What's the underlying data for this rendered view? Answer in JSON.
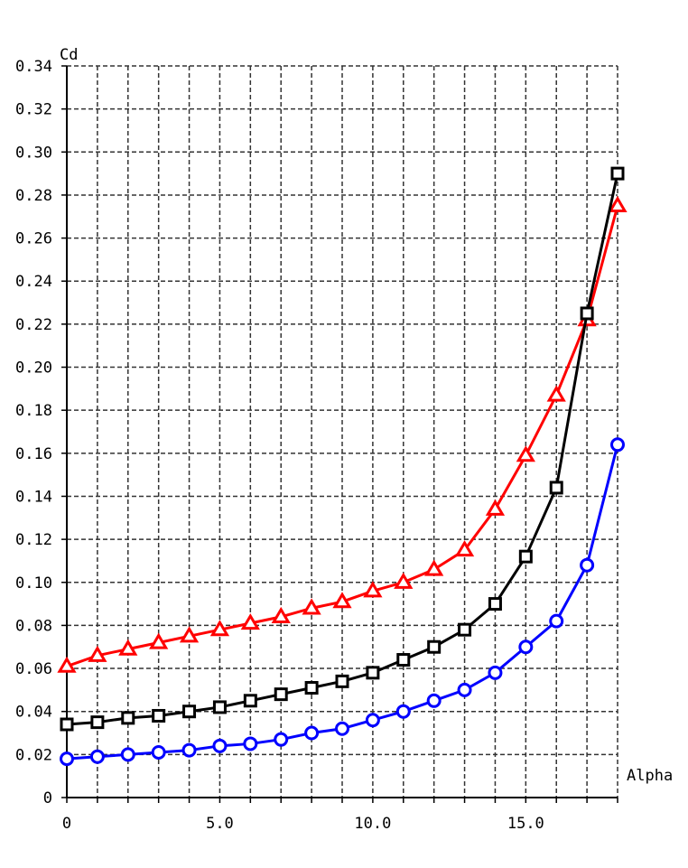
{
  "chart_data": {
    "type": "line",
    "title": "",
    "xlabel": "Alpha",
    "ylabel": "Cd",
    "xlim": [
      0,
      18
    ],
    "ylim": [
      0,
      0.34
    ],
    "grid": true,
    "x_ticks": [
      {
        "value": 0,
        "label": "0"
      },
      {
        "value": 5,
        "label": "5.0"
      },
      {
        "value": 10,
        "label": "10.0"
      },
      {
        "value": 15,
        "label": "15.0"
      }
    ],
    "y_ticks": [
      {
        "value": 0,
        "label": "0"
      },
      {
        "value": 0.02,
        "label": "0.02"
      },
      {
        "value": 0.04,
        "label": "0.04"
      },
      {
        "value": 0.06,
        "label": "0.06"
      },
      {
        "value": 0.08,
        "label": "0.08"
      },
      {
        "value": 0.1,
        "label": "0.10"
      },
      {
        "value": 0.12,
        "label": "0.12"
      },
      {
        "value": 0.14,
        "label": "0.14"
      },
      {
        "value": 0.16,
        "label": "0.16"
      },
      {
        "value": 0.18,
        "label": "0.18"
      },
      {
        "value": 0.2,
        "label": "0.20"
      },
      {
        "value": 0.22,
        "label": "0.22"
      },
      {
        "value": 0.24,
        "label": "0.24"
      },
      {
        "value": 0.26,
        "label": "0.26"
      },
      {
        "value": 0.28,
        "label": "0.28"
      },
      {
        "value": 0.3,
        "label": "0.30"
      },
      {
        "value": 0.32,
        "label": "0.32"
      },
      {
        "value": 0.34,
        "label": "0.34"
      }
    ],
    "x": [
      0,
      1,
      2,
      3,
      4,
      5,
      6,
      7,
      8,
      9,
      10,
      11,
      12,
      13,
      14,
      15,
      16,
      17,
      18
    ],
    "series": [
      {
        "color": "#ff0000",
        "marker": "triangle",
        "values": [
          0.061,
          0.066,
          0.069,
          0.072,
          0.075,
          0.078,
          0.081,
          0.084,
          0.088,
          0.091,
          0.096,
          0.1,
          0.106,
          0.115,
          0.134,
          0.159,
          0.187,
          0.222,
          0.275
        ]
      },
      {
        "color": "#000000",
        "marker": "square",
        "values": [
          0.034,
          0.035,
          0.037,
          0.038,
          0.04,
          0.042,
          0.045,
          0.048,
          0.051,
          0.054,
          0.058,
          0.064,
          0.07,
          0.078,
          0.09,
          0.112,
          0.144,
          0.225,
          0.29
        ]
      },
      {
        "color": "#0000ff",
        "marker": "circle",
        "values": [
          0.018,
          0.019,
          0.02,
          0.021,
          0.022,
          0.024,
          0.025,
          0.027,
          0.03,
          0.032,
          0.036,
          0.04,
          0.045,
          0.05,
          0.058,
          0.07,
          0.082,
          0.108,
          0.164
        ]
      }
    ]
  }
}
